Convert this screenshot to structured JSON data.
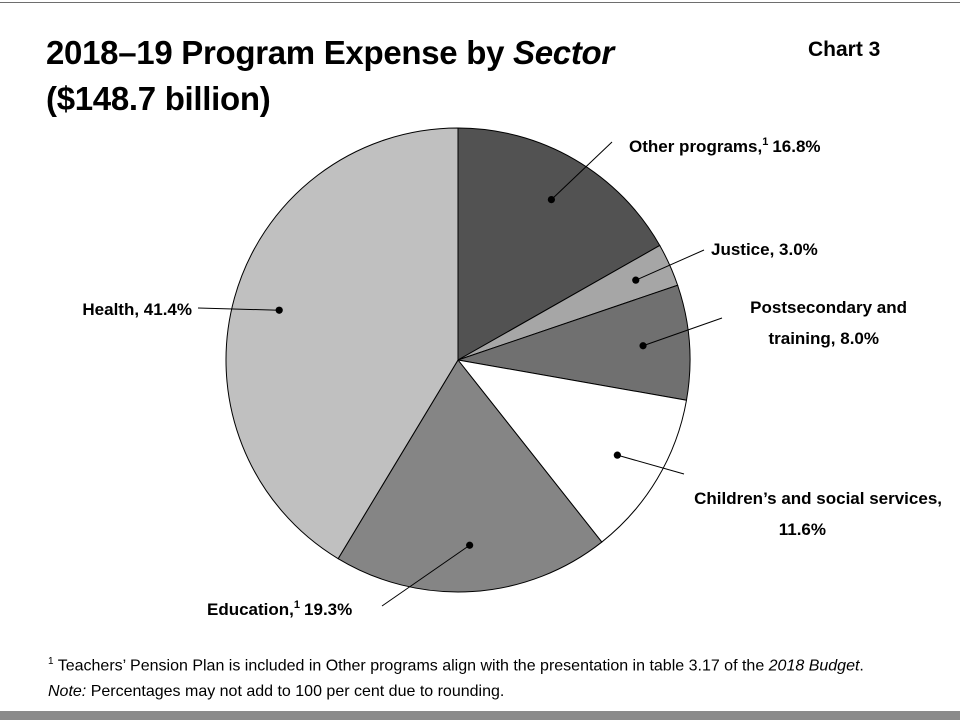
{
  "header": {
    "title_part1": "2018–19 Program Expense by ",
    "title_italic": "Sector",
    "title_line2": "($148.7 billion)",
    "chart_number": "Chart 3"
  },
  "chart_data": {
    "type": "pie",
    "total_label": "($148.7 billion)",
    "slices": [
      {
        "name": "Other programs,",
        "footnote_marker": "1",
        "value": 16.8,
        "value_label": "16.8%",
        "color": "#525252"
      },
      {
        "name": "Justice,",
        "value": 3.0,
        "value_label": "3.0%",
        "color": "#a6a6a6"
      },
      {
        "name": "Postsecondary and training,",
        "value": 8.0,
        "value_label": "8.0%",
        "color": "#707070"
      },
      {
        "name": "Children’s and social services,",
        "value": 11.6,
        "value_label": "11.6%",
        "color": "#ffffff"
      },
      {
        "name": "Education,",
        "footnote_marker": "1",
        "value": 19.3,
        "value_label": "19.3%",
        "color": "#858585"
      },
      {
        "name": "Health,",
        "value": 41.4,
        "value_label": "41.4%",
        "color": "#c0c0c0"
      }
    ]
  },
  "labels": {
    "other_programs_name": "Other programs,",
    "other_programs_sup": "1",
    "other_programs_value": "16.8%",
    "justice": "Justice, 3.0%",
    "postsecondary_line1": "Postsecondary and",
    "postsecondary_line2": "training, 8.0%",
    "children_line1": "Children’s and social services,",
    "children_line2": "11.6%",
    "education_name": "Education,",
    "education_sup": "1",
    "education_value": "19.3%",
    "health": "Health, 41.4%"
  },
  "footnote": {
    "marker": "1",
    "line1_text": "Teachers’ Pension Plan is included in Other programs align with the presentation in table 3.17 of the ",
    "line1_italic": "2018 Budget",
    "line1_end": ".",
    "note_label": "Note:",
    "note_text": "Percentages may not add to 100 per cent due to rounding."
  }
}
